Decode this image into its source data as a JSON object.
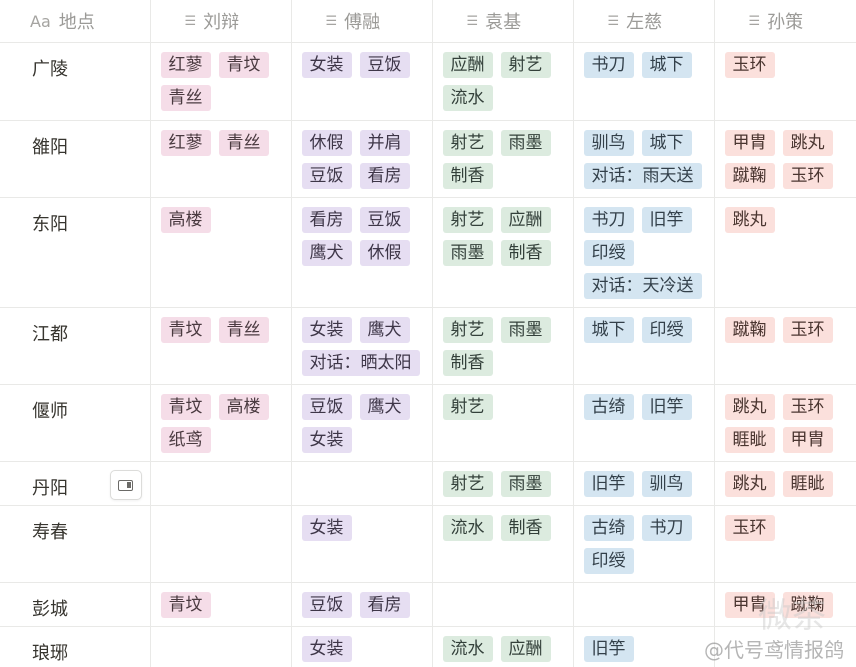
{
  "header": {
    "place_icon": "Aa",
    "place_label": "地点",
    "list_icon": "list-icon",
    "columns": [
      "刘辩",
      "傅融",
      "袁基",
      "左慈",
      "孙策"
    ]
  },
  "colors": {
    "pink": "#f5dde8",
    "purple": "#e6def2",
    "green": "#dcebdf",
    "blue": "#d4e5f1",
    "red": "#fbe0dc"
  },
  "rows": [
    {
      "place": "广陵",
      "cols": [
        [
          "红蓼",
          "青坟",
          "青丝"
        ],
        [
          "女装",
          "豆饭"
        ],
        [
          "应酬",
          "射艺",
          "流水"
        ],
        [
          "书刀",
          "城下"
        ],
        [
          "玉环"
        ]
      ]
    },
    {
      "place": "雒阳",
      "cols": [
        [
          "红蓼",
          "青丝"
        ],
        [
          "休假",
          "并肩",
          "豆饭",
          "看房"
        ],
        [
          "射艺",
          "雨墨",
          "制香"
        ],
        [
          "驯鸟",
          "城下",
          "对话：雨天送"
        ],
        [
          "甲胄",
          "跳丸",
          "蹴鞠",
          "玉环"
        ]
      ]
    },
    {
      "place": "东阳",
      "cols": [
        [
          "高楼"
        ],
        [
          "看房",
          "豆饭",
          "鹰犬",
          "休假"
        ],
        [
          "射艺",
          "应酬",
          "雨墨",
          "制香"
        ],
        [
          "书刀",
          "旧竽",
          "印绶",
          "对话：天冷送"
        ],
        [
          "跳丸"
        ]
      ]
    },
    {
      "place": "江都",
      "cols": [
        [
          "青坟",
          "青丝"
        ],
        [
          "女装",
          "鹰犬",
          "对话：晒太阳"
        ],
        [
          "射艺",
          "雨墨",
          "制香"
        ],
        [
          "城下",
          "印绶"
        ],
        [
          "蹴鞠",
          "玉环"
        ]
      ]
    },
    {
      "place": "偃师",
      "cols": [
        [
          "青坟",
          "高楼",
          "纸鸢"
        ],
        [
          "豆饭",
          "鹰犬",
          "女装"
        ],
        [
          "射艺"
        ],
        [
          "古绮",
          "旧竽"
        ],
        [
          "跳丸",
          "玉环",
          "睚眦",
          "甲胄"
        ]
      ]
    },
    {
      "place": "丹阳",
      "cols": [
        [],
        [],
        [
          "射艺",
          "雨墨"
        ],
        [
          "旧竽",
          "驯鸟"
        ],
        [
          "跳丸",
          "睚眦"
        ]
      ]
    },
    {
      "place": "寿春",
      "cols": [
        [],
        [
          "女装"
        ],
        [
          "流水",
          "制香"
        ],
        [
          "古绮",
          "书刀",
          "印绶"
        ],
        [
          "玉环"
        ]
      ]
    },
    {
      "place": "彭城",
      "cols": [
        [
          "青坟"
        ],
        [
          "豆饭",
          "看房"
        ],
        [],
        [],
        [
          "甲胄",
          "蹴鞠"
        ]
      ]
    },
    {
      "place": "琅琊",
      "cols": [
        [],
        [
          "女装"
        ],
        [
          "流水",
          "应酬"
        ],
        [
          "旧竽"
        ],
        []
      ]
    }
  ],
  "row_heights": [
    78,
    77,
    110,
    77,
    77,
    44,
    77,
    44,
    44
  ],
  "watermark": {
    "text": "@代号鸢情报鸽",
    "logo": "微茶"
  }
}
